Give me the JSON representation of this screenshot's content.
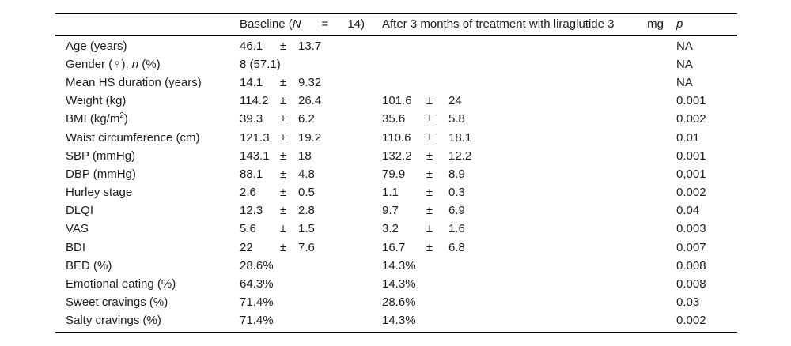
{
  "table": {
    "header": {
      "baseline": {
        "pre": "Baseline (",
        "n": "N",
        "eq": "=",
        "count": "14)"
      },
      "after": {
        "text": "After 3 months of treatment with liraglutide 3",
        "unit": "mg"
      },
      "p": "p"
    },
    "rows": [
      {
        "label": "Age (years)",
        "baseline": {
          "mean": "46.1",
          "pm": "±",
          "sd": "13.7"
        },
        "p": "NA"
      },
      {
        "label_pre": "Gender (♀), ",
        "label_italic": "n",
        "label_post": " (%)",
        "baseline": {
          "mean": "8 (57.1)"
        },
        "p": "NA"
      },
      {
        "label": "Mean HS duration (years)",
        "baseline": {
          "mean": "14.1",
          "pm": "±",
          "sd": "9.32"
        },
        "p": "NA"
      },
      {
        "label": "Weight (kg)",
        "baseline": {
          "mean": "114.2",
          "pm": "±",
          "sd": "26.4"
        },
        "after": {
          "mean": "101.6",
          "pm": "±",
          "sd": "24"
        },
        "p": "0.001"
      },
      {
        "label_pre": "BMI (kg/m",
        "label_sup": "2",
        "label_post": ")",
        "baseline": {
          "mean": "39.3",
          "pm": "±",
          "sd": "6.2"
        },
        "after": {
          "mean": "35.6",
          "pm": "±",
          "sd": "5.8"
        },
        "p": "0.002"
      },
      {
        "label": "Waist circumference (cm)",
        "baseline": {
          "mean": "121.3",
          "pm": "±",
          "sd": "19.2"
        },
        "after": {
          "mean": "110.6",
          "pm": "±",
          "sd": "18.1"
        },
        "p": "0.01"
      },
      {
        "label": "SBP (mmHg)",
        "baseline": {
          "mean": "143.1",
          "pm": "±",
          "sd": "18"
        },
        "after": {
          "mean": "132.2",
          "pm": "±",
          "sd": "12.2"
        },
        "p": "0.001"
      },
      {
        "label": "DBP (mmHg)",
        "baseline": {
          "mean": "88.1",
          "pm": "±",
          "sd": "4.8"
        },
        "after": {
          "mean": "79.9",
          "pm": "±",
          "sd": "8.9"
        },
        "p": "0,001"
      },
      {
        "label": "Hurley stage",
        "baseline": {
          "mean": "2.6",
          "pm": "±",
          "sd": "0.5"
        },
        "after": {
          "mean": "1.1",
          "pm": "±",
          "sd": "0.3"
        },
        "p": "0.002"
      },
      {
        "label": "DLQI",
        "baseline": {
          "mean": "12.3",
          "pm": "±",
          "sd": "2.8"
        },
        "after": {
          "mean": "9.7",
          "pm": "±",
          "sd": "6.9"
        },
        "p": "0.04"
      },
      {
        "label": "VAS",
        "baseline": {
          "mean": "5.6",
          "pm": "±",
          "sd": "1.5"
        },
        "after": {
          "mean": "3.2",
          "pm": "±",
          "sd": "1.6"
        },
        "p": "0.003"
      },
      {
        "label": "BDI",
        "baseline": {
          "mean": "22",
          "pm": "±",
          "sd": "7.6"
        },
        "after": {
          "mean": "16.7",
          "pm": "±",
          "sd": "6.8"
        },
        "p": "0.007"
      },
      {
        "label": "BED (%)",
        "baseline": {
          "mean": "28.6%"
        },
        "after": {
          "mean": "14.3%"
        },
        "p": "0.008"
      },
      {
        "label": "Emotional eating (%)",
        "baseline": {
          "mean": "64.3%"
        },
        "after": {
          "mean": "14.3%"
        },
        "p": "0.008"
      },
      {
        "label": "Sweet cravings (%)",
        "baseline": {
          "mean": "71.4%"
        },
        "after": {
          "mean": "28.6%"
        },
        "p": "0.03"
      },
      {
        "label": "Salty cravings (%)",
        "baseline": {
          "mean": "71.4%"
        },
        "after": {
          "mean": "14.3%"
        },
        "p": "0.002"
      }
    ]
  }
}
